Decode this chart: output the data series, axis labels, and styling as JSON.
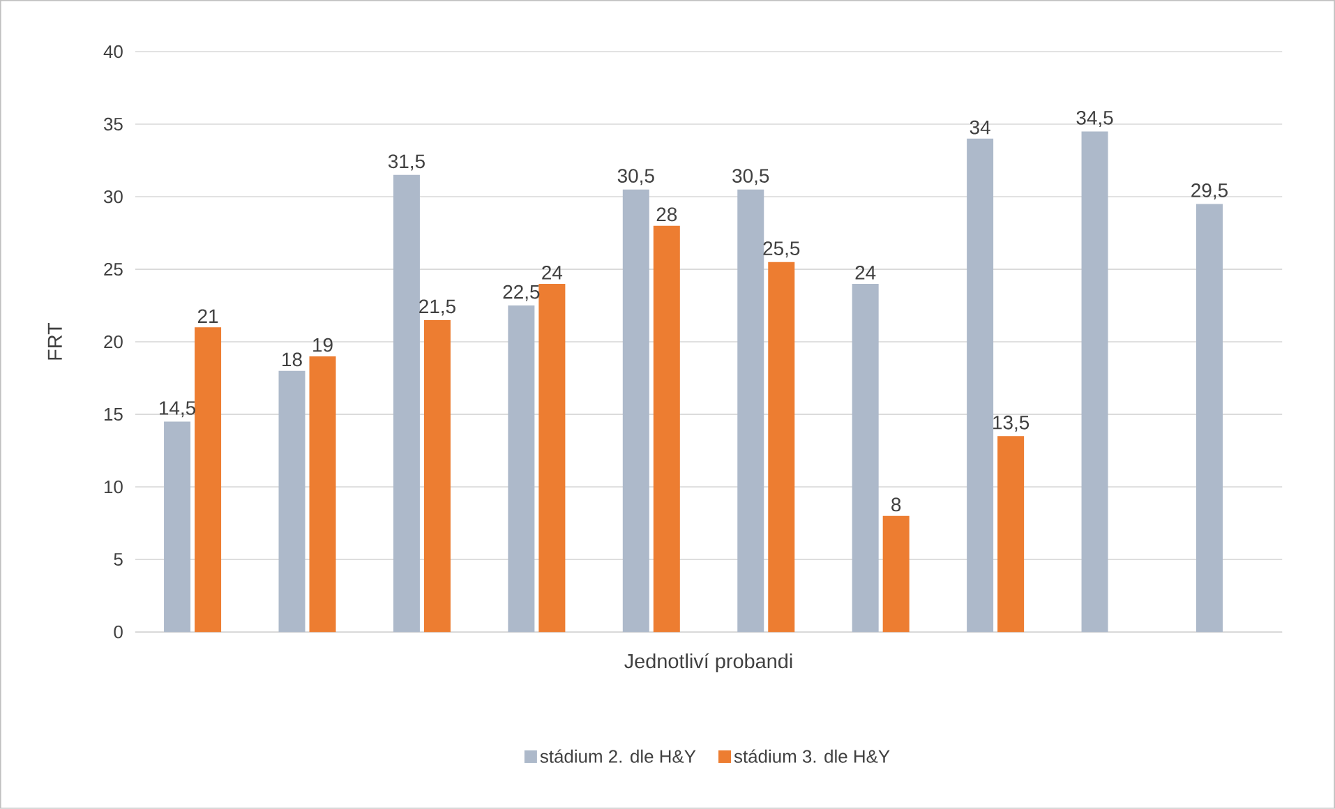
{
  "chart_data": {
    "type": "bar",
    "xlabel": "Jednotliví probandi",
    "ylabel": "FRT",
    "categories": [
      null,
      null,
      null,
      null,
      null,
      null,
      null,
      null,
      null,
      null
    ],
    "series": [
      {
        "name": "stádium 2. dle H&Y",
        "color": "#adb9ca",
        "values": [
          14.5,
          18,
          31.5,
          22.5,
          30.5,
          30.5,
          24,
          34,
          34.5,
          29.5
        ],
        "value_labels": [
          "14,5",
          "18",
          "31,5",
          "22,5",
          "30,5",
          "30,5",
          "24",
          "34",
          "34,5",
          "29,5"
        ]
      },
      {
        "name": "stádium 3. dle H&Y",
        "color": "#ed7d31",
        "values": [
          21,
          19,
          21.5,
          24,
          28,
          25.5,
          8,
          13.5,
          null,
          null
        ],
        "value_labels": [
          "21",
          "19",
          "21,5",
          "24",
          "28",
          "25,5",
          "8",
          "13,5",
          null,
          null
        ]
      }
    ],
    "ylim": [
      0,
      40
    ],
    "yticks": [
      0,
      5,
      10,
      15,
      20,
      25,
      30,
      35,
      40
    ],
    "grid": "y",
    "legend": "bottom"
  }
}
